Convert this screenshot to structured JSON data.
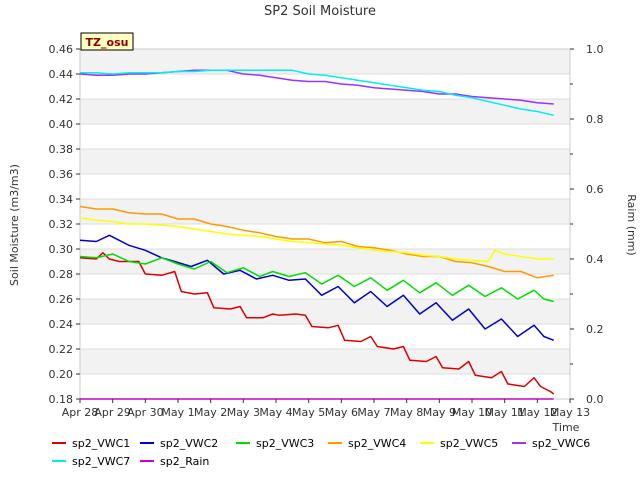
{
  "chart_data": {
    "type": "line",
    "title": "SP2 Soil Moisture",
    "xlabel": "Time",
    "ylabel": "Soil Moisture (m3/m3)",
    "y2label": "Raim (mm)",
    "badge": "TZ_osu",
    "x_ticks": [
      "Apr 28",
      "Apr 29",
      "Apr 30",
      "May 1",
      "May 2",
      "May 3",
      "May 4",
      "May 5",
      "May 6",
      "May 7",
      "May 8",
      "May 9",
      "May 10",
      "May 11",
      "May 12",
      "May 13"
    ],
    "xlim": [
      0,
      15
    ],
    "ylim": [
      0.18,
      0.46
    ],
    "y_ticks": [
      0.18,
      0.2,
      0.22,
      0.24,
      0.26,
      0.28,
      0.3,
      0.32,
      0.34,
      0.36,
      0.38,
      0.4,
      0.42,
      0.44,
      0.46
    ],
    "y2lim": [
      0.0,
      1.0
    ],
    "y2_ticks": [
      0.0,
      0.2,
      0.4,
      0.6,
      0.8,
      1.0
    ],
    "grid": true,
    "legend_position": "bottom",
    "series": [
      {
        "name": "sp2_VWC1",
        "color": "#dd0000",
        "axis": "left",
        "x": [
          0,
          0.5,
          0.7,
          0.9,
          1.2,
          1.8,
          2.0,
          2.5,
          2.9,
          3.1,
          3.5,
          3.9,
          4.1,
          4.6,
          4.9,
          5.1,
          5.6,
          5.9,
          6.1,
          6.6,
          6.9,
          7.1,
          7.6,
          7.9,
          8.1,
          8.6,
          8.9,
          9.1,
          9.6,
          9.9,
          10.1,
          10.6,
          10.9,
          11.1,
          11.6,
          11.9,
          12.1,
          12.6,
          12.9,
          13.1,
          13.6,
          13.9,
          14.1,
          14.4,
          14.5
        ],
        "y": [
          0.293,
          0.292,
          0.297,
          0.292,
          0.29,
          0.29,
          0.28,
          0.279,
          0.282,
          0.266,
          0.264,
          0.265,
          0.253,
          0.252,
          0.254,
          0.245,
          0.245,
          0.248,
          0.247,
          0.248,
          0.247,
          0.238,
          0.237,
          0.239,
          0.227,
          0.226,
          0.23,
          0.222,
          0.22,
          0.222,
          0.211,
          0.21,
          0.214,
          0.205,
          0.204,
          0.21,
          0.199,
          0.197,
          0.202,
          0.192,
          0.19,
          0.197,
          0.19,
          0.186,
          0.184
        ]
      },
      {
        "name": "sp2_VWC2",
        "color": "#0000cc",
        "axis": "left",
        "x": [
          0,
          0.5,
          0.9,
          1.5,
          2.0,
          2.5,
          2.9,
          3.4,
          3.9,
          4.4,
          4.9,
          5.4,
          5.9,
          6.4,
          6.9,
          7.4,
          7.9,
          8.4,
          8.9,
          9.4,
          9.9,
          10.4,
          10.9,
          11.4,
          11.9,
          12.4,
          12.9,
          13.4,
          13.9,
          14.2,
          14.5
        ],
        "y": [
          0.307,
          0.306,
          0.311,
          0.303,
          0.299,
          0.293,
          0.29,
          0.286,
          0.291,
          0.28,
          0.283,
          0.276,
          0.279,
          0.275,
          0.276,
          0.263,
          0.27,
          0.257,
          0.266,
          0.254,
          0.263,
          0.248,
          0.257,
          0.243,
          0.252,
          0.236,
          0.244,
          0.23,
          0.239,
          0.23,
          0.227
        ]
      },
      {
        "name": "sp2_VWC3",
        "color": "#00dd00",
        "axis": "left",
        "x": [
          0,
          0.5,
          1.0,
          1.5,
          2.0,
          2.5,
          3.0,
          3.5,
          4.0,
          4.5,
          5.0,
          5.5,
          5.9,
          6.4,
          6.9,
          7.4,
          7.9,
          8.4,
          8.9,
          9.4,
          9.9,
          10.4,
          10.9,
          11.4,
          11.9,
          12.4,
          12.9,
          13.4,
          13.9,
          14.2,
          14.5
        ],
        "y": [
          0.294,
          0.293,
          0.296,
          0.29,
          0.288,
          0.293,
          0.288,
          0.284,
          0.29,
          0.281,
          0.285,
          0.278,
          0.282,
          0.278,
          0.281,
          0.272,
          0.279,
          0.27,
          0.277,
          0.267,
          0.275,
          0.265,
          0.273,
          0.263,
          0.271,
          0.262,
          0.269,
          0.26,
          0.267,
          0.26,
          0.258
        ]
      },
      {
        "name": "sp2_VWC4",
        "color": "#ff9900",
        "axis": "left",
        "x": [
          0,
          0.5,
          1.0,
          1.5,
          2.0,
          2.5,
          3.0,
          3.5,
          4.0,
          4.5,
          5.0,
          5.5,
          6.0,
          6.5,
          7.0,
          7.5,
          8.0,
          8.5,
          9.0,
          9.5,
          10.0,
          10.5,
          11.0,
          11.5,
          12.0,
          12.5,
          13.0,
          13.5,
          14.0,
          14.5
        ],
        "y": [
          0.334,
          0.332,
          0.332,
          0.329,
          0.328,
          0.328,
          0.324,
          0.324,
          0.32,
          0.318,
          0.315,
          0.313,
          0.31,
          0.308,
          0.308,
          0.305,
          0.306,
          0.302,
          0.301,
          0.299,
          0.296,
          0.294,
          0.294,
          0.29,
          0.289,
          0.286,
          0.282,
          0.282,
          0.277,
          0.279
        ]
      },
      {
        "name": "sp2_VWC5",
        "color": "#ffff00",
        "axis": "left",
        "x": [
          0,
          0.5,
          1.0,
          1.5,
          2.0,
          2.5,
          3.0,
          3.5,
          4.0,
          4.5,
          5.0,
          5.5,
          6.0,
          6.5,
          7.0,
          7.5,
          8.0,
          8.5,
          9.0,
          9.5,
          10.0,
          10.5,
          11.0,
          11.5,
          12.0,
          12.5,
          12.7,
          13.0,
          13.5,
          14.0,
          14.5
        ],
        "y": [
          0.325,
          0.323,
          0.322,
          0.32,
          0.32,
          0.319,
          0.318,
          0.316,
          0.314,
          0.312,
          0.311,
          0.31,
          0.308,
          0.306,
          0.305,
          0.304,
          0.303,
          0.301,
          0.299,
          0.298,
          0.297,
          0.295,
          0.294,
          0.292,
          0.291,
          0.29,
          0.299,
          0.296,
          0.294,
          0.292,
          0.292
        ]
      },
      {
        "name": "sp2_VWC6",
        "color": "#9933ff",
        "axis": "left",
        "x": [
          0,
          0.5,
          1.0,
          1.5,
          2.0,
          2.5,
          3.0,
          3.5,
          4.0,
          4.5,
          5.0,
          5.5,
          6.0,
          6.5,
          7.0,
          7.5,
          8.0,
          8.5,
          9.0,
          9.5,
          10.0,
          10.5,
          11.0,
          11.5,
          12.0,
          12.5,
          13.0,
          13.5,
          14.0,
          14.5
        ],
        "y": [
          0.44,
          0.439,
          0.439,
          0.44,
          0.44,
          0.441,
          0.442,
          0.443,
          0.443,
          0.443,
          0.44,
          0.439,
          0.437,
          0.435,
          0.434,
          0.434,
          0.432,
          0.431,
          0.429,
          0.428,
          0.427,
          0.426,
          0.424,
          0.424,
          0.422,
          0.421,
          0.42,
          0.419,
          0.417,
          0.416
        ]
      },
      {
        "name": "sp2_VWC7",
        "color": "#00eeee",
        "axis": "left",
        "x": [
          0,
          0.5,
          1.0,
          1.5,
          2.0,
          2.5,
          3.0,
          3.5,
          4.0,
          4.5,
          5.0,
          5.5,
          6.0,
          6.5,
          7.0,
          7.5,
          8.0,
          8.5,
          9.0,
          9.5,
          10.0,
          10.5,
          11.0,
          11.5,
          12.0,
          12.5,
          13.0,
          13.5,
          14.0,
          14.5
        ],
        "y": [
          0.441,
          0.441,
          0.44,
          0.441,
          0.441,
          0.441,
          0.442,
          0.442,
          0.443,
          0.443,
          0.443,
          0.443,
          0.443,
          0.443,
          0.44,
          0.439,
          0.437,
          0.435,
          0.433,
          0.431,
          0.429,
          0.427,
          0.426,
          0.423,
          0.421,
          0.418,
          0.415,
          0.412,
          0.41,
          0.407
        ]
      },
      {
        "name": "sp2_Rain",
        "color": "#cc00cc",
        "axis": "right",
        "x": [
          0,
          14.5
        ],
        "y": [
          0.0,
          0.0
        ]
      }
    ]
  }
}
